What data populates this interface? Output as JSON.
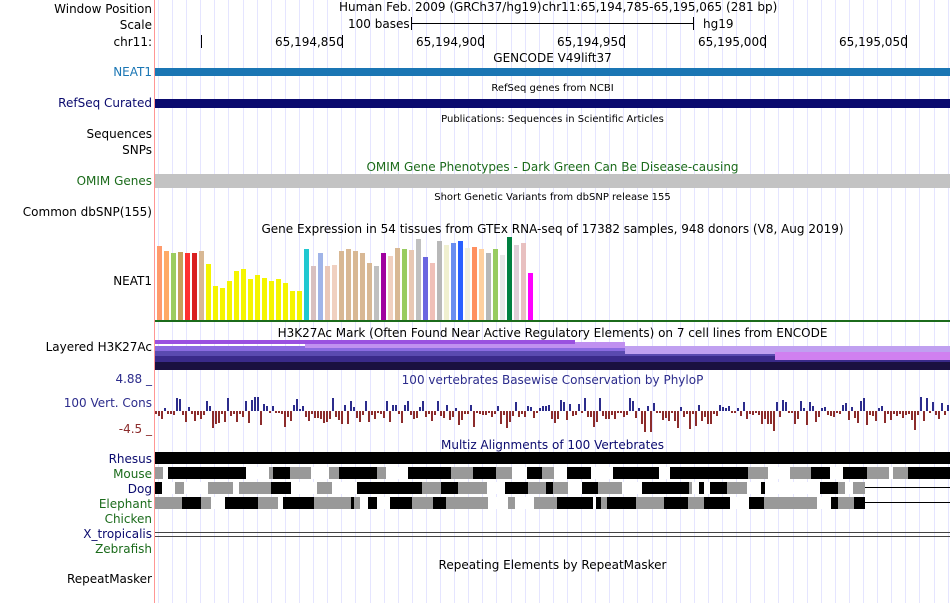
{
  "header": {
    "window_position_label": "Window Position",
    "scale_label": "Scale",
    "chrom_label": "chr11:",
    "assembly_text": "Human Feb. 2009 (GRCh37/hg19)",
    "position_text": "chr11:65,194,785-65,195,065 (281 bp)",
    "scale_text": "100 bases",
    "db_text": "hg19",
    "positions": [
      "65,194,850",
      "65,194,900",
      "65,194,950",
      "65,195,000",
      "65,195,050"
    ]
  },
  "tracks": {
    "gencode": {
      "title": "GENCODE V49lift37",
      "label": "NEAT1",
      "color": "#1a76b4"
    },
    "refseq": {
      "title": "RefSeq genes from NCBI",
      "label": "RefSeq Curated",
      "color": "#0a0a6e"
    },
    "pubs": {
      "title": "Publications: Sequences in Scientific Articles",
      "label_line1": "Sequences",
      "label_line2": "SNPs"
    },
    "omim": {
      "title": "OMIM Gene Phenotypes - Dark Green Can Be Disease-causing",
      "label": "OMIM Genes",
      "color": "#1b6b1b",
      "bar_color": "#c3c3c3"
    },
    "dbsnp": {
      "title": "Short Genetic Variants from dbSNP release 155",
      "label": "Common dbSNP(155)"
    },
    "gtex": {
      "title": "Gene Expression in 54 tissues from GTEx RNA-seq of 17382 samples, 948 donors (V8, Aug 2019)",
      "label": "NEAT1",
      "values": [
        75,
        70,
        68,
        69,
        68,
        68,
        70,
        57,
        35,
        33,
        40,
        50,
        52,
        42,
        46,
        43,
        40,
        42,
        38,
        30,
        30,
        72,
        55,
        68,
        55,
        56,
        70,
        72,
        70,
        68,
        58,
        55,
        68,
        65,
        73,
        72,
        71,
        82,
        64,
        58,
        80,
        76,
        78,
        80,
        73,
        74,
        72,
        68,
        72,
        66,
        84,
        76,
        78,
        48
      ],
      "colors": [
        "#ff9a6c",
        "#ffaa66",
        "#9ccc60",
        "#c8a05a",
        "#ff3030",
        "#d92020",
        "#d8b894",
        "#f5f500",
        "#f5f500",
        "#f5f500",
        "#f5f500",
        "#f5f500",
        "#f5f500",
        "#f5f500",
        "#f5f500",
        "#f5f500",
        "#f5f500",
        "#f5f500",
        "#f5f500",
        "#f5f500",
        "#f5f500",
        "#20c8d0",
        "#d8c0c0",
        "#a0b4e8",
        "#eac8b8",
        "#f0d0c0",
        "#d8b894",
        "#d8b894",
        "#d8b894",
        "#d8b894",
        "#d8b894",
        "#c0c0c0",
        "#a000a0",
        "#f0d0c0",
        "#d8b894",
        "#98cc60",
        "#e8c8b4",
        "#c0c0c0",
        "#6a66e0",
        "#f0c0b8",
        "#b8b8b8",
        "#f0f0d0",
        "#6a8ef0",
        "#2a60ff",
        "#f0f0e0",
        "#ff9060",
        "#ffd0a0",
        "#b8b8b8",
        "#98cc60",
        "#e8e8e8",
        "#008040",
        "#e0d0d8",
        "#e8c0c0",
        "#ff00ff"
      ]
    },
    "h3k27ac": {
      "title": "H3K27Ac Mark (Often Found Near Active Regulatory Elements) on 7 cell lines from ENCODE",
      "label": "Layered H3K27Ac"
    },
    "phylop": {
      "title": "100 vertebrates Basewise Conservation by PhyloP",
      "label": "100 Vert. Cons",
      "max_label": "4.88 _",
      "min_label": "-4.5 _",
      "pos_color": "#2c2c8c",
      "neg_color": "#8c2c2c"
    },
    "multiz": {
      "title": "Multiz Alignments of 100 Vertebrates",
      "species": [
        {
          "name": "Rhesus",
          "color": "#0a0a6e"
        },
        {
          "name": "Mouse",
          "color": "#1b6b1b"
        },
        {
          "name": "Dog",
          "color": "#0a0a6e"
        },
        {
          "name": "Elephant",
          "color": "#1b6b1b"
        },
        {
          "name": "Chicken",
          "color": "#1b6b1b"
        },
        {
          "name": "X_tropicalis",
          "color": "#0a0a6e"
        },
        {
          "name": "Zebrafish",
          "color": "#1b6b1b"
        }
      ]
    },
    "repeatmasker": {
      "title": "Repeating Elements by RepeatMasker",
      "label": "RepeatMasker"
    }
  }
}
